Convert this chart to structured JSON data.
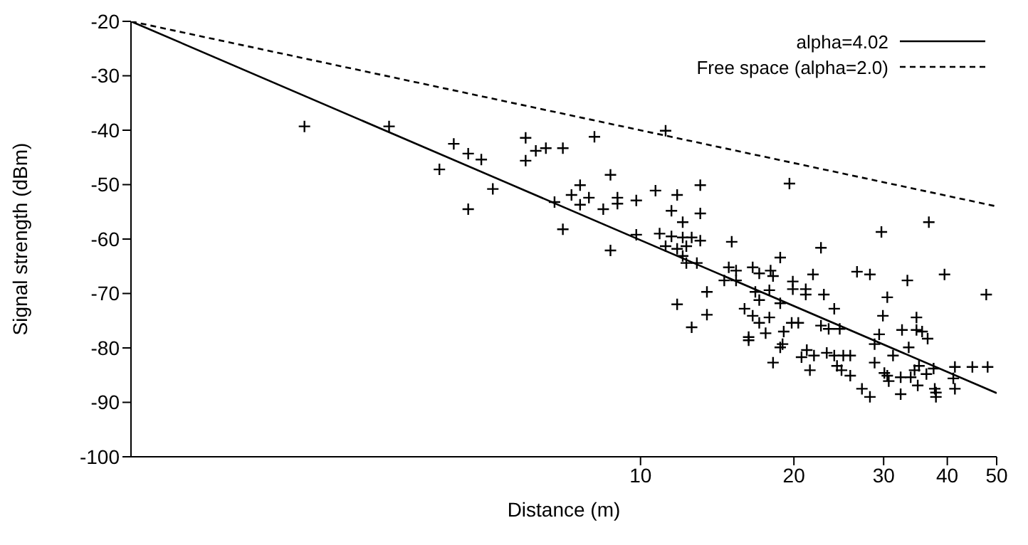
{
  "chart_data": {
    "type": "scatter",
    "xlabel": "Distance (m)",
    "ylabel": "Signal strength (dBm)",
    "log": "x",
    "xlim": [
      1,
      50
    ],
    "xticks": [
      10,
      20,
      30,
      40,
      50
    ],
    "ylim": [
      -100,
      -20
    ],
    "yticks": [
      -100,
      -90,
      -80,
      -70,
      -60,
      -50,
      -40,
      -30,
      -20
    ],
    "grid": false,
    "legend": "top right",
    "series": [
      {
        "type": "line",
        "name": "alpha=4.02",
        "color": "#000000",
        "line_style": "solid",
        "x": [
          1,
          50
        ],
        "values": [
          -20,
          -88.3
        ]
      },
      {
        "type": "line",
        "name": "Free space (alpha=2.0)",
        "color": "#000000",
        "line_style": "dashed",
        "x": [
          1,
          50
        ],
        "values": [
          -20,
          -54
        ]
      },
      {
        "color": "#000000",
        "marker": "cross",
        "x": [
          2.19,
          3.21,
          4.3,
          4.59,
          4.87,
          4.03,
          5.13,
          4.59,
          5.95,
          6.23,
          6.52,
          7.04,
          5.95,
          8.12,
          6.78,
          7.04,
          7.32,
          7.61,
          7.92,
          7.61,
          8.45,
          8.73,
          9.01,
          9.01,
          9.81,
          9.81,
          8.73,
          10.7,
          11.2,
          11.8,
          13.1,
          11.5,
          13.1,
          12.1,
          10.9,
          11.5,
          12.1,
          12.6,
          13.1,
          11.2,
          11.8,
          12.3,
          12.1,
          12.3,
          12.9,
          15.1,
          13.5,
          11.8,
          13.5,
          12.6,
          14.6,
          14.9,
          15.4,
          15.4,
          16.6,
          17.1,
          18,
          18.2,
          18.8,
          19.6,
          16.8,
          17.1,
          16,
          16.6,
          17.1,
          17.9,
          17.6,
          16.3,
          16.3,
          18.8,
          17.9,
          19.9,
          19.9,
          21.1,
          21.1,
          21.8,
          22.9,
          22.6,
          19.1,
          19,
          18.8,
          19.8,
          20.4,
          18.2,
          21.2,
          20.7,
          21.9,
          23.2,
          21.5,
          22.6,
          23.4,
          24,
          24.6,
          24,
          25,
          25.8,
          24.3,
          24.8,
          25.8,
          27.2,
          28.2,
          26.6,
          28.2,
          29.7,
          36.8,
          33.4,
          39.5,
          47.7,
          30.5,
          29.9,
          29.4,
          28.8,
          28.8,
          31.3,
          30.1,
          30.5,
          30.7,
          32.4,
          33.9,
          32.6,
          33.6,
          34.8,
          34.8,
          35.7,
          36.6,
          35.2,
          34.5,
          36.4,
          37.6,
          35,
          32.4,
          37.8,
          38,
          38,
          41.4,
          41.1,
          41.4,
          44.8,
          48
        ],
        "values": [
          -39.3,
          -39.3,
          -42.5,
          -44.3,
          -45.4,
          -47.2,
          -50.8,
          -54.5,
          -41.4,
          -43.8,
          -43.3,
          -43.3,
          -45.6,
          -41.2,
          -53.2,
          -58.2,
          -51.9,
          -50.1,
          -52.4,
          -53.7,
          -54.5,
          -48.2,
          -52.4,
          -53.5,
          -52.9,
          -59.2,
          -62.1,
          -51.1,
          -40.1,
          -51.9,
          -50.1,
          -54.8,
          -55.3,
          -56.9,
          -59,
          -59.5,
          -59.7,
          -59.7,
          -60.3,
          -61.3,
          -61.8,
          -61.3,
          -63.1,
          -64.4,
          -64.4,
          -60.5,
          -69.7,
          -72,
          -73.9,
          -76.2,
          -67.6,
          -65.2,
          -65.8,
          -67.6,
          -65.2,
          -66.3,
          -65.8,
          -66.8,
          -63.4,
          -49.8,
          -69.7,
          -71.2,
          -72.8,
          -74.1,
          -75.4,
          -74.4,
          -77.3,
          -78,
          -78.6,
          -71.8,
          -69.4,
          -67.8,
          -69.2,
          -69.2,
          -70.2,
          -66.5,
          -70.2,
          -61.6,
          -77,
          -79.3,
          -79.9,
          -75.4,
          -75.4,
          -82.7,
          -80.4,
          -81.7,
          -81.4,
          -80.9,
          -84.1,
          -75.9,
          -76.5,
          -72.8,
          -76.5,
          -81.4,
          -81.4,
          -81.4,
          -83.3,
          -84.1,
          -85.1,
          -87.5,
          -89,
          -66,
          -66.5,
          -58.7,
          -56.9,
          -67.6,
          -66.5,
          -70.2,
          -70.7,
          -74.1,
          -77.5,
          -79.3,
          -82.7,
          -81.4,
          -84.6,
          -85.1,
          -86.1,
          -85.4,
          -85.4,
          -76.7,
          -79.9,
          -74.4,
          -76.7,
          -77,
          -78.3,
          -83.3,
          -84.1,
          -84.8,
          -83.8,
          -86.9,
          -88.5,
          -87.5,
          -88.2,
          -89,
          -83.5,
          -85.6,
          -87.5,
          -83.5,
          -83.5
        ]
      }
    ]
  }
}
